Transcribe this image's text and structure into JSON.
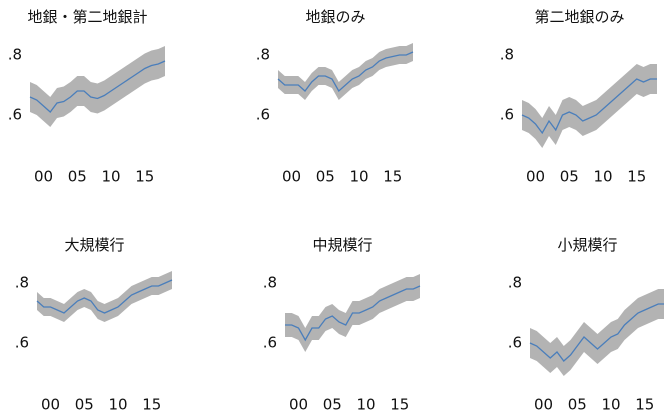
{
  "chart_data": [
    {
      "type": "line",
      "title": "地銀・第二地銀計",
      "color": "#4a7ebb",
      "band_color": "#b3b3b3",
      "x": [
        1998,
        1999,
        2000,
        2001,
        2002,
        2003,
        2004,
        2005,
        2006,
        2007,
        2008,
        2009,
        2010,
        2011,
        2012,
        2013,
        2014,
        2015,
        2016,
        2017,
        2018
      ],
      "values": [
        0.66,
        0.65,
        0.63,
        0.61,
        0.64,
        0.645,
        0.66,
        0.68,
        0.68,
        0.66,
        0.655,
        0.665,
        0.68,
        0.695,
        0.71,
        0.725,
        0.74,
        0.755,
        0.765,
        0.77,
        0.78
      ],
      "lower": [
        0.61,
        0.6,
        0.58,
        0.56,
        0.59,
        0.595,
        0.61,
        0.63,
        0.63,
        0.61,
        0.605,
        0.615,
        0.63,
        0.645,
        0.66,
        0.675,
        0.69,
        0.705,
        0.715,
        0.72,
        0.73
      ],
      "upper": [
        0.71,
        0.7,
        0.68,
        0.66,
        0.69,
        0.695,
        0.71,
        0.73,
        0.73,
        0.71,
        0.705,
        0.715,
        0.73,
        0.745,
        0.76,
        0.775,
        0.79,
        0.805,
        0.815,
        0.82,
        0.83
      ],
      "xlim": [
        1998,
        2018
      ],
      "ylim": [
        0.45,
        0.85
      ],
      "xticks": [
        {
          "value": 2000,
          "label": "00"
        },
        {
          "value": 2005,
          "label": "05"
        },
        {
          "value": 2010,
          "label": "10"
        },
        {
          "value": 2015,
          "label": "15"
        }
      ],
      "yticks": [
        {
          "value": 0.6,
          "label": ".6"
        },
        {
          "value": 0.8,
          "label": ".8"
        }
      ]
    },
    {
      "type": "line",
      "title": "地銀のみ",
      "color": "#4a7ebb",
      "band_color": "#b3b3b3",
      "x": [
        1998,
        1999,
        2000,
        2001,
        2002,
        2003,
        2004,
        2005,
        2006,
        2007,
        2008,
        2009,
        2010,
        2011,
        2012,
        2013,
        2014,
        2015,
        2016,
        2017,
        2018
      ],
      "values": [
        0.72,
        0.7,
        0.7,
        0.7,
        0.68,
        0.71,
        0.73,
        0.73,
        0.72,
        0.68,
        0.7,
        0.72,
        0.73,
        0.75,
        0.76,
        0.78,
        0.79,
        0.795,
        0.8,
        0.8,
        0.81
      ],
      "lower": [
        0.69,
        0.67,
        0.67,
        0.67,
        0.65,
        0.68,
        0.7,
        0.7,
        0.69,
        0.65,
        0.67,
        0.69,
        0.7,
        0.72,
        0.73,
        0.75,
        0.76,
        0.765,
        0.77,
        0.77,
        0.78
      ],
      "upper": [
        0.75,
        0.73,
        0.73,
        0.73,
        0.71,
        0.74,
        0.76,
        0.76,
        0.75,
        0.71,
        0.73,
        0.75,
        0.76,
        0.78,
        0.79,
        0.81,
        0.82,
        0.825,
        0.83,
        0.83,
        0.84
      ],
      "xlim": [
        1998,
        2018
      ],
      "ylim": [
        0.45,
        0.85
      ],
      "xticks": [
        {
          "value": 2000,
          "label": "00"
        },
        {
          "value": 2005,
          "label": "05"
        },
        {
          "value": 2010,
          "label": "10"
        },
        {
          "value": 2015,
          "label": "15"
        }
      ],
      "yticks": [
        {
          "value": 0.6,
          "label": ".6"
        },
        {
          "value": 0.8,
          "label": ".8"
        }
      ]
    },
    {
      "type": "line",
      "title": "第二地銀のみ",
      "color": "#4a7ebb",
      "band_color": "#b3b3b3",
      "x": [
        1998,
        1999,
        2000,
        2001,
        2002,
        2003,
        2004,
        2005,
        2006,
        2007,
        2008,
        2009,
        2010,
        2011,
        2012,
        2013,
        2014,
        2015,
        2016,
        2017,
        2018
      ],
      "values": [
        0.6,
        0.59,
        0.57,
        0.54,
        0.58,
        0.55,
        0.6,
        0.61,
        0.6,
        0.58,
        0.59,
        0.6,
        0.62,
        0.64,
        0.66,
        0.68,
        0.7,
        0.72,
        0.71,
        0.72,
        0.72
      ],
      "lower": [
        0.55,
        0.54,
        0.52,
        0.49,
        0.53,
        0.5,
        0.55,
        0.56,
        0.55,
        0.53,
        0.54,
        0.55,
        0.57,
        0.59,
        0.61,
        0.63,
        0.65,
        0.67,
        0.66,
        0.67,
        0.67
      ],
      "upper": [
        0.65,
        0.64,
        0.62,
        0.59,
        0.63,
        0.6,
        0.65,
        0.66,
        0.65,
        0.63,
        0.64,
        0.65,
        0.67,
        0.69,
        0.71,
        0.73,
        0.75,
        0.77,
        0.76,
        0.77,
        0.77
      ],
      "xlim": [
        1998,
        2018
      ],
      "ylim": [
        0.45,
        0.85
      ],
      "xticks": [
        {
          "value": 2000,
          "label": "00"
        },
        {
          "value": 2005,
          "label": "05"
        },
        {
          "value": 2010,
          "label": "10"
        },
        {
          "value": 2015,
          "label": "15"
        }
      ],
      "yticks": [
        {
          "value": 0.6,
          "label": ".6"
        },
        {
          "value": 0.8,
          "label": ".8"
        }
      ]
    },
    {
      "type": "line",
      "title": "大規模行",
      "color": "#4a7ebb",
      "band_color": "#b3b3b3",
      "x": [
        1998,
        1999,
        2000,
        2001,
        2002,
        2003,
        2004,
        2005,
        2006,
        2007,
        2008,
        2009,
        2010,
        2011,
        2012,
        2013,
        2014,
        2015,
        2016,
        2017,
        2018
      ],
      "values": [
        0.74,
        0.72,
        0.72,
        0.71,
        0.7,
        0.72,
        0.74,
        0.75,
        0.74,
        0.71,
        0.7,
        0.71,
        0.72,
        0.74,
        0.76,
        0.77,
        0.78,
        0.79,
        0.79,
        0.8,
        0.81
      ],
      "lower": [
        0.71,
        0.69,
        0.69,
        0.68,
        0.67,
        0.69,
        0.71,
        0.72,
        0.71,
        0.68,
        0.67,
        0.68,
        0.69,
        0.71,
        0.73,
        0.74,
        0.75,
        0.76,
        0.76,
        0.77,
        0.78
      ],
      "upper": [
        0.77,
        0.75,
        0.75,
        0.74,
        0.73,
        0.75,
        0.77,
        0.78,
        0.77,
        0.74,
        0.73,
        0.74,
        0.75,
        0.77,
        0.79,
        0.8,
        0.81,
        0.82,
        0.82,
        0.83,
        0.84
      ],
      "xlim": [
        1998,
        2018
      ],
      "ylim": [
        0.45,
        0.85
      ],
      "xticks": [
        {
          "value": 2000,
          "label": "00"
        },
        {
          "value": 2005,
          "label": "05"
        },
        {
          "value": 2010,
          "label": "10"
        },
        {
          "value": 2015,
          "label": "15"
        }
      ],
      "yticks": [
        {
          "value": 0.6,
          "label": ".6"
        },
        {
          "value": 0.8,
          "label": ".8"
        }
      ]
    },
    {
      "type": "line",
      "title": "中規模行",
      "color": "#4a7ebb",
      "band_color": "#b3b3b3",
      "x": [
        1998,
        1999,
        2000,
        2001,
        2002,
        2003,
        2004,
        2005,
        2006,
        2007,
        2008,
        2009,
        2010,
        2011,
        2012,
        2013,
        2014,
        2015,
        2016,
        2017,
        2018
      ],
      "values": [
        0.66,
        0.66,
        0.65,
        0.61,
        0.65,
        0.65,
        0.68,
        0.69,
        0.67,
        0.66,
        0.7,
        0.7,
        0.71,
        0.72,
        0.74,
        0.75,
        0.76,
        0.77,
        0.78,
        0.78,
        0.79
      ],
      "lower": [
        0.62,
        0.62,
        0.61,
        0.57,
        0.61,
        0.61,
        0.64,
        0.65,
        0.63,
        0.62,
        0.66,
        0.66,
        0.67,
        0.68,
        0.7,
        0.71,
        0.72,
        0.73,
        0.74,
        0.74,
        0.75
      ],
      "upper": [
        0.7,
        0.7,
        0.69,
        0.65,
        0.69,
        0.69,
        0.72,
        0.73,
        0.71,
        0.7,
        0.74,
        0.74,
        0.75,
        0.76,
        0.78,
        0.79,
        0.8,
        0.81,
        0.82,
        0.82,
        0.83
      ],
      "xlim": [
        1998,
        2018
      ],
      "ylim": [
        0.45,
        0.85
      ],
      "xticks": [
        {
          "value": 2000,
          "label": "00"
        },
        {
          "value": 2005,
          "label": "05"
        },
        {
          "value": 2010,
          "label": "10"
        },
        {
          "value": 2015,
          "label": "15"
        }
      ],
      "yticks": [
        {
          "value": 0.6,
          "label": ".6"
        },
        {
          "value": 0.8,
          "label": ".8"
        }
      ]
    },
    {
      "type": "line",
      "title": "小規模行",
      "color": "#4a7ebb",
      "band_color": "#b3b3b3",
      "x": [
        1998,
        1999,
        2000,
        2001,
        2002,
        2003,
        2004,
        2005,
        2006,
        2007,
        2008,
        2009,
        2010,
        2011,
        2012,
        2013,
        2014,
        2015,
        2016,
        2017,
        2018
      ],
      "values": [
        0.6,
        0.59,
        0.57,
        0.55,
        0.57,
        0.54,
        0.56,
        0.59,
        0.62,
        0.6,
        0.58,
        0.6,
        0.62,
        0.63,
        0.66,
        0.68,
        0.7,
        0.71,
        0.72,
        0.73,
        0.73
      ],
      "lower": [
        0.55,
        0.54,
        0.52,
        0.5,
        0.52,
        0.49,
        0.51,
        0.54,
        0.57,
        0.55,
        0.53,
        0.55,
        0.57,
        0.58,
        0.61,
        0.63,
        0.65,
        0.66,
        0.67,
        0.68,
        0.68
      ],
      "upper": [
        0.65,
        0.64,
        0.62,
        0.6,
        0.62,
        0.59,
        0.61,
        0.64,
        0.67,
        0.65,
        0.63,
        0.65,
        0.67,
        0.68,
        0.71,
        0.73,
        0.75,
        0.76,
        0.77,
        0.78,
        0.78
      ],
      "xlim": [
        1998,
        2018
      ],
      "ylim": [
        0.45,
        0.85
      ],
      "xticks": [
        {
          "value": 2000,
          "label": "00"
        },
        {
          "value": 2005,
          "label": "05"
        },
        {
          "value": 2010,
          "label": "10"
        },
        {
          "value": 2015,
          "label": "15"
        }
      ],
      "yticks": [
        {
          "value": 0.6,
          "label": ".6"
        },
        {
          "value": 0.8,
          "label": ".8"
        }
      ]
    }
  ]
}
